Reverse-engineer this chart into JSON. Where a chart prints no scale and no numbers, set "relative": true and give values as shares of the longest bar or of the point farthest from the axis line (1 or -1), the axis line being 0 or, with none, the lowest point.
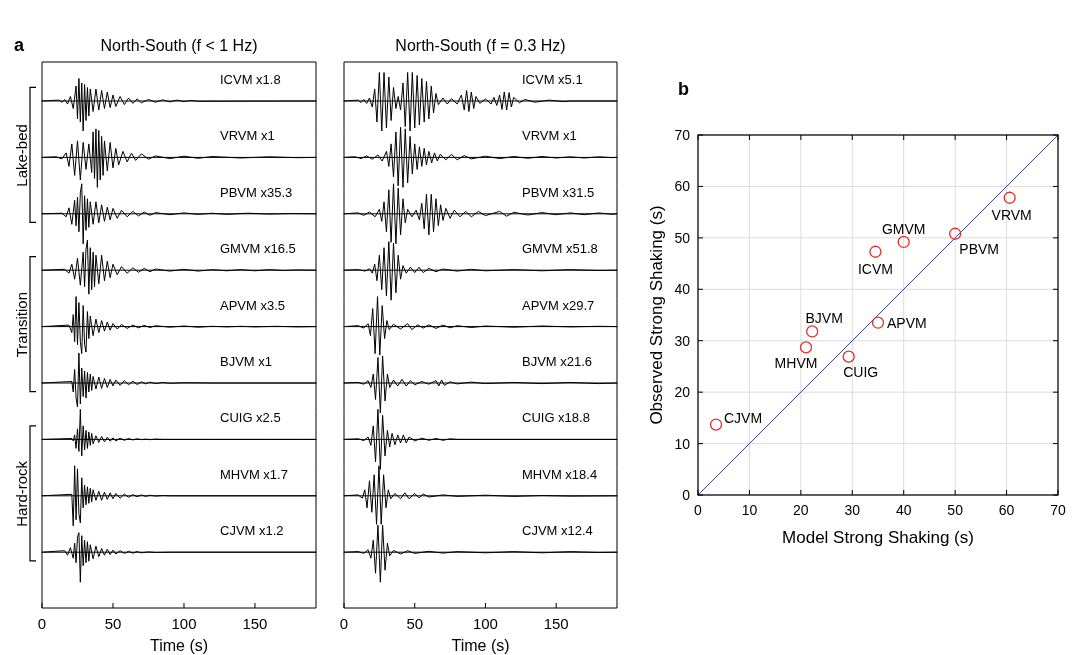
{
  "chart_data": [
    {
      "type": "line",
      "relative": true,
      "title": "North-South (f < 1 Hz)",
      "subtitle": "a",
      "annotations": [
        "ICVM x1.8"
      ],
      "xlim": [
        0,
        193
      ],
      "color": "#000000",
      "x": [
        0,
        12,
        14,
        16,
        18,
        20,
        22,
        24,
        25,
        26,
        27,
        28,
        29,
        30,
        31,
        32,
        33,
        34,
        36,
        38,
        40,
        42,
        44,
        46,
        48,
        50,
        52,
        55,
        58,
        61,
        64,
        67,
        70,
        75,
        80,
        85,
        90,
        95,
        100,
        105,
        110,
        193
      ],
      "values": [
        0,
        0.03,
        -0.04,
        0.05,
        -0.1,
        0.15,
        -0.25,
        0.5,
        -0.6,
        0.75,
        -0.7,
        0.6,
        -1,
        0.55,
        -0.65,
        0.45,
        -0.5,
        0.4,
        -0.35,
        0.4,
        -0.3,
        0.35,
        -0.25,
        0.3,
        -0.22,
        0.2,
        -0.18,
        0.15,
        -0.12,
        0.1,
        -0.08,
        0.07,
        -0.06,
        0.05,
        -0.04,
        0.04,
        -0.03,
        0.03,
        -0.02,
        0.02,
        -0.01,
        0
      ]
    },
    {
      "type": "line",
      "relative": true,
      "annotations": [
        "VRVM x1",
        "Lake-bed"
      ],
      "xlim": [
        0,
        193
      ],
      "color": "#000000",
      "x": [
        0,
        10,
        14,
        17,
        19,
        21,
        23,
        25,
        27,
        29,
        31,
        33,
        35,
        36,
        37,
        38,
        39,
        40,
        41,
        42,
        43,
        44,
        46,
        48,
        50,
        52,
        54,
        57,
        60,
        63,
        66,
        70,
        75,
        80,
        90,
        100,
        110,
        120,
        140,
        160,
        180,
        193
      ],
      "values": [
        0,
        0.02,
        -0.05,
        0.15,
        -0.3,
        0.45,
        -0.6,
        0.55,
        -0.75,
        0.5,
        -0.4,
        0.45,
        -0.5,
        0.85,
        -0.7,
        0.95,
        -1,
        0.9,
        -0.75,
        0.7,
        -0.6,
        0.55,
        -0.45,
        0.5,
        -0.35,
        0.3,
        -0.25,
        0.2,
        -0.15,
        0.14,
        -0.1,
        0.12,
        -0.06,
        0.05,
        -0.04,
        0.04,
        -0.03,
        0.03,
        -0.02,
        0.02,
        -0.01,
        0
      ]
    },
    {
      "type": "line",
      "relative": true,
      "annotations": [
        "PBVM x35.3"
      ],
      "xlim": [
        0,
        193
      ],
      "color": "#000000",
      "x": [
        0,
        14,
        17,
        19,
        21,
        23,
        24,
        25,
        26,
        27,
        28,
        29,
        30,
        31,
        32,
        33,
        34,
        36,
        38,
        40,
        42,
        44,
        46,
        48,
        50,
        53,
        56,
        60,
        64,
        68,
        72,
        76,
        80,
        90,
        100,
        110,
        120,
        130,
        145,
        160,
        175,
        193
      ],
      "values": [
        0,
        0.02,
        -0.1,
        0.2,
        -0.35,
        0.45,
        -0.4,
        0.55,
        -0.6,
        0.7,
        1,
        -1,
        0.6,
        -0.55,
        0.5,
        -0.45,
        0.4,
        -0.35,
        0.4,
        -0.3,
        0.3,
        -0.25,
        0.22,
        -0.2,
        0.18,
        -0.15,
        0.12,
        -0.1,
        0.08,
        -0.07,
        0.06,
        -0.05,
        0.04,
        -0.03,
        0.03,
        -0.02,
        0.02,
        -0.02,
        0.02,
        -0.01,
        0.01,
        0
      ]
    },
    {
      "type": "line",
      "relative": true,
      "annotations": [
        "GMVM x16.5"
      ],
      "xlim": [
        0,
        193
      ],
      "color": "#000000",
      "x": [
        0,
        16,
        19,
        21,
        23,
        25,
        27,
        29,
        30,
        31,
        32,
        33,
        34,
        35,
        36,
        37,
        38,
        40,
        42,
        44,
        46,
        48,
        50,
        53,
        56,
        60,
        64,
        68,
        72,
        76,
        80,
        90,
        100,
        110,
        120,
        130,
        140,
        150,
        160,
        170,
        180,
        193
      ],
      "values": [
        0,
        0.03,
        -0.1,
        0.2,
        -0.3,
        0.4,
        -0.5,
        0.6,
        -0.55,
        0.7,
        1,
        -0.8,
        0.75,
        -0.65,
        0.6,
        -0.55,
        0.5,
        -0.45,
        0.5,
        -0.35,
        0.3,
        -0.25,
        0.2,
        -0.15,
        0.12,
        -0.1,
        0.08,
        -0.07,
        0.06,
        -0.05,
        0.04,
        -0.03,
        0.03,
        -0.03,
        0.02,
        -0.02,
        0.02,
        -0.02,
        0.02,
        -0.01,
        0.01,
        0
      ]
    },
    {
      "type": "line",
      "relative": true,
      "annotations": [
        "APVM x3.5",
        "Transition"
      ],
      "xlim": [
        0,
        193
      ],
      "color": "#000000",
      "x": [
        0,
        19,
        21,
        22,
        23,
        24,
        25,
        26,
        27,
        28,
        29,
        30,
        31,
        32,
        33,
        34,
        36,
        38,
        40,
        42,
        44,
        46,
        48,
        50,
        53,
        56,
        60,
        64,
        68,
        72,
        76,
        80,
        90,
        100,
        110,
        120,
        130,
        140,
        150,
        165,
        180,
        193
      ],
      "values": [
        0,
        0.05,
        -0.2,
        0.4,
        -0.5,
        1,
        -0.6,
        0.8,
        -0.5,
        -0.9,
        0.7,
        -0.6,
        -0.85,
        0.5,
        -0.4,
        0.35,
        -0.3,
        0.25,
        -0.2,
        0.2,
        -0.15,
        0.15,
        -0.12,
        0.1,
        -0.08,
        0.07,
        -0.06,
        0.05,
        -0.04,
        0.04,
        -0.03,
        0.03,
        -0.02,
        0.02,
        -0.02,
        0.01,
        -0.01,
        0.01,
        -0.01,
        0.01,
        -0.01,
        0
      ]
    },
    {
      "type": "line",
      "relative": true,
      "annotations": [
        "BJVM x1"
      ],
      "xlim": [
        0,
        193
      ],
      "color": "#000000",
      "x": [
        0,
        21,
        22,
        23,
        24,
        25,
        26,
        27,
        28,
        29,
        30,
        31,
        32,
        33,
        34,
        35,
        36,
        38,
        40,
        42,
        44,
        46,
        48,
        50,
        52,
        55,
        58,
        61,
        64,
        67,
        70,
        73,
        76,
        80,
        85,
        90,
        100,
        120,
        140,
        160,
        180,
        193
      ],
      "values": [
        0,
        0.05,
        -0.3,
        0.45,
        -0.5,
        -0.8,
        1,
        -0.7,
        0.5,
        -0.45,
        0.4,
        -0.5,
        0.35,
        -0.3,
        0.3,
        -0.25,
        0.22,
        -0.2,
        0.2,
        -0.18,
        0.15,
        -0.15,
        0.12,
        -0.1,
        0.1,
        -0.08,
        0.08,
        -0.06,
        0.06,
        -0.05,
        0.04,
        -0.03,
        0.03,
        -0.02,
        0.02,
        -0.01,
        0.01,
        0,
        0,
        0,
        0,
        0
      ]
    },
    {
      "type": "line",
      "relative": true,
      "annotations": [
        "CUIG x2.5"
      ],
      "xlim": [
        0,
        193
      ],
      "color": "#000000",
      "x": [
        0,
        21,
        22,
        23,
        24,
        25,
        26,
        27,
        28,
        29,
        30,
        31,
        32,
        33,
        34,
        35,
        36,
        38,
        40,
        42,
        44,
        46,
        48,
        50,
        52,
        55,
        58,
        61,
        64,
        67,
        70,
        73,
        76,
        80,
        85,
        90,
        100,
        120,
        140,
        160,
        180,
        193
      ],
      "values": [
        0,
        0.03,
        -0.05,
        0.15,
        -0.3,
        0.35,
        -0.4,
        1,
        -0.55,
        0.45,
        -0.35,
        0.3,
        -0.3,
        0.25,
        -0.2,
        0.2,
        -0.15,
        0.12,
        -0.1,
        0.1,
        -0.08,
        0.07,
        -0.06,
        0.05,
        -0.05,
        0.04,
        -0.03,
        0.03,
        -0.02,
        0.02,
        -0.01,
        0.01,
        -0.01,
        0.01,
        0,
        0,
        0,
        0,
        0,
        0,
        0,
        0
      ]
    },
    {
      "type": "line",
      "relative": true,
      "annotations": [
        "MHVM x1.7",
        "Hard-rock"
      ],
      "xlim": [
        0,
        193
      ],
      "color": "#000000",
      "x": [
        0,
        21,
        22,
        23,
        24,
        25,
        26,
        27,
        28,
        29,
        30,
        31,
        32,
        33,
        34,
        35,
        36,
        38,
        40,
        42,
        44,
        46,
        48,
        50,
        52,
        55,
        58,
        61,
        64,
        67,
        70,
        73,
        76,
        80,
        85,
        90,
        100,
        120,
        140,
        160,
        180,
        193
      ],
      "values": [
        0,
        0.05,
        -1,
        1,
        -0.8,
        0.9,
        -0.6,
        -0.9,
        0.6,
        -0.4,
        0.35,
        -0.3,
        0.3,
        -0.25,
        0.25,
        -0.2,
        0.2,
        -0.15,
        0.15,
        -0.15,
        0.12,
        -0.12,
        0.1,
        -0.1,
        0.08,
        -0.08,
        0.06,
        -0.05,
        0.04,
        -0.03,
        0.03,
        -0.02,
        0.02,
        -0.01,
        0.01,
        0,
        0,
        0,
        0,
        0,
        0,
        0
      ]
    },
    {
      "type": "line",
      "relative": true,
      "annotations": [
        "CJVM x1.2"
      ],
      "xlabel": "Time (s)",
      "tick_labels": "x",
      "xlim": [
        0,
        193
      ],
      "xticks": [
        0,
        50,
        100,
        150
      ],
      "color": "#000000",
      "x": [
        0,
        16,
        18,
        20,
        22,
        23,
        24,
        25,
        26,
        27,
        28,
        29,
        30,
        31,
        32,
        33,
        34,
        36,
        38,
        40,
        42,
        44,
        46,
        48,
        50,
        52,
        55,
        58,
        61,
        64,
        67,
        70,
        75,
        80,
        90,
        100,
        110,
        120,
        140,
        160,
        180,
        193
      ],
      "values": [
        0,
        0.05,
        -0.1,
        0.15,
        -0.2,
        0.3,
        -0.35,
        0.5,
        0.65,
        -1,
        0.55,
        -0.45,
        0.4,
        -0.35,
        0.35,
        -0.3,
        0.25,
        -0.22,
        0.2,
        -0.15,
        0.12,
        -0.1,
        0.1,
        -0.08,
        0.07,
        -0.06,
        0.05,
        -0.04,
        0.03,
        -0.03,
        0.02,
        -0.02,
        0.01,
        -0.01,
        0,
        0,
        0,
        0,
        0,
        0,
        0,
        0
      ]
    },
    {
      "type": "line",
      "relative": true,
      "title": "North-South (f = 0.3 Hz)",
      "annotations": [
        "ICVM x5.1"
      ],
      "xlim": [
        0,
        193
      ],
      "color": "#000000",
      "x": [
        0,
        10,
        12,
        14,
        16,
        18,
        20,
        21.7,
        23.3,
        25,
        26.7,
        28.3,
        30,
        31.7,
        33.3,
        35,
        36.7,
        38.3,
        40,
        41.7,
        43.3,
        45,
        46.7,
        48.3,
        50,
        51.7,
        53.3,
        55,
        56.7,
        58.3,
        60,
        61.7,
        63.3,
        65,
        66.7,
        70,
        73,
        76,
        80,
        83,
        85,
        86.7,
        88.3,
        90,
        91.7,
        93.3,
        96,
        100,
        104,
        106,
        108,
        110,
        111.7,
        113.3,
        115,
        116.7,
        118.3,
        120,
        124,
        128,
        135,
        145,
        155,
        160,
        193
      ],
      "values": [
        0,
        0.03,
        -0.05,
        0.05,
        -0.08,
        0.1,
        -0.2,
        0.4,
        -0.7,
        0.95,
        -1,
        0.95,
        -0.9,
        0.8,
        -0.65,
        0.45,
        -0.25,
        0.15,
        -0.3,
        0.6,
        -0.85,
        0.95,
        -1,
        0.95,
        -0.9,
        0.85,
        -0.8,
        0.75,
        -0.7,
        0.65,
        -0.6,
        0.5,
        -0.4,
        0.25,
        -0.12,
        0.1,
        -0.1,
        0.08,
        -0.1,
        0.2,
        -0.3,
        0.35,
        -0.35,
        0.3,
        -0.25,
        0.15,
        -0.08,
        0.07,
        -0.1,
        0.12,
        -0.15,
        0.2,
        -0.28,
        0.3,
        -0.3,
        0.28,
        -0.2,
        0.12,
        -0.06,
        0.05,
        -0.04,
        0.03,
        -0.02,
        0,
        0
      ]
    },
    {
      "type": "line",
      "relative": true,
      "annotations": [
        "VRVM x1"
      ],
      "xlim": [
        0,
        193
      ],
      "color": "#000000",
      "x": [
        0,
        8,
        12,
        16,
        20,
        24,
        27,
        30,
        31.7,
        33.3,
        35,
        36.7,
        38.3,
        40,
        41.7,
        43.3,
        45,
        46.7,
        48.3,
        50,
        51.7,
        53.3,
        55,
        56.7,
        58.3,
        60,
        62,
        64,
        66,
        68,
        72,
        76,
        80,
        85,
        90,
        100,
        110,
        120,
        130,
        140,
        150,
        160,
        170,
        180,
        190,
        193
      ],
      "values": [
        0,
        0.02,
        -0.04,
        0.05,
        -0.06,
        0.08,
        -0.12,
        0.2,
        -0.3,
        0.45,
        -0.65,
        0.85,
        -0.95,
        1,
        -1,
        0.95,
        -0.85,
        0.7,
        -0.55,
        0.45,
        -0.4,
        0.35,
        -0.3,
        0.3,
        -0.25,
        0.2,
        -0.18,
        0.15,
        -0.12,
        0.1,
        -0.08,
        0.1,
        -0.08,
        0.06,
        -0.05,
        0.04,
        -0.04,
        0.03,
        -0.03,
        0.03,
        -0.02,
        0.02,
        -0.02,
        0.02,
        -0.01,
        0
      ]
    },
    {
      "type": "line",
      "relative": true,
      "annotations": [
        "PBVM x31.5"
      ],
      "xlim": [
        0,
        193
      ],
      "color": "#000000",
      "x": [
        0,
        10,
        14,
        18,
        22,
        25,
        26.7,
        28.3,
        30,
        31.7,
        33.3,
        35,
        36.7,
        38.3,
        40,
        41.7,
        43.3,
        45,
        48,
        51,
        53.3,
        55,
        56.7,
        58.3,
        60,
        61.7,
        63.3,
        65,
        66.7,
        68.3,
        70,
        72,
        75,
        78,
        82,
        86,
        90,
        95,
        100,
        110,
        115,
        120,
        130,
        140,
        150,
        160,
        170,
        180,
        190,
        193
      ],
      "values": [
        0,
        0.03,
        -0.05,
        0.06,
        -0.1,
        0.15,
        -0.25,
        0.4,
        -0.6,
        0.8,
        -0.95,
        1,
        -1,
        0.85,
        -0.7,
        0.5,
        -0.3,
        0.15,
        -0.1,
        0.12,
        -0.2,
        0.35,
        -0.5,
        0.65,
        -0.7,
        0.65,
        -0.6,
        0.5,
        -0.4,
        0.3,
        -0.22,
        0.18,
        -0.15,
        0.12,
        -0.1,
        0.08,
        -0.1,
        0.08,
        -0.06,
        0.08,
        -0.08,
        0.05,
        -0.04,
        0.04,
        -0.03,
        0.03,
        -0.03,
        0.03,
        -0.02,
        0
      ]
    },
    {
      "type": "line",
      "relative": true,
      "annotations": [
        "GMVM x51.8"
      ],
      "xlim": [
        0,
        193
      ],
      "color": "#000000",
      "x": [
        0,
        10,
        15,
        18,
        20,
        21.7,
        23.3,
        25,
        26.7,
        28.3,
        30,
        31.7,
        33.3,
        35,
        36.7,
        38.3,
        40,
        41.7,
        44,
        47,
        50,
        53,
        56,
        60,
        65,
        70,
        80,
        90,
        100,
        120,
        140,
        160,
        180,
        193
      ],
      "values": [
        0,
        0.02,
        -0.03,
        0.05,
        -0.1,
        0.2,
        -0.35,
        0.5,
        -0.65,
        0.75,
        -0.85,
        0.95,
        -1,
        0.9,
        -0.75,
        0.5,
        -0.3,
        0.15,
        -0.1,
        0.1,
        -0.08,
        0.1,
        -0.08,
        0.06,
        -0.05,
        0.04,
        -0.03,
        0.03,
        -0.02,
        0.02,
        -0.02,
        0.02,
        -0.01,
        0
      ]
    },
    {
      "type": "line",
      "relative": true,
      "annotations": [
        "APVM x29.7"
      ],
      "xlim": [
        0,
        193
      ],
      "color": "#000000",
      "x": [
        0,
        10,
        14,
        17,
        18.7,
        20.3,
        22,
        23.7,
        25.3,
        27,
        28.7,
        30.3,
        32,
        35,
        40,
        45,
        48,
        52,
        56,
        60,
        65,
        70,
        75,
        80,
        90,
        100,
        120,
        140,
        160,
        180,
        193
      ],
      "values": [
        0,
        0.03,
        -0.05,
        0.1,
        -0.3,
        0.6,
        -0.9,
        1,
        -0.95,
        0.7,
        -0.4,
        0.2,
        -0.1,
        0.08,
        -0.08,
        0.1,
        -0.1,
        0.06,
        -0.05,
        0.06,
        -0.06,
        0.05,
        -0.04,
        0.03,
        -0.03,
        0.02,
        -0.02,
        0.02,
        -0.01,
        0.01,
        0
      ]
    },
    {
      "type": "line",
      "relative": true,
      "annotations": [
        "BJVM x21.6"
      ],
      "xlim": [
        0,
        193
      ],
      "color": "#000000",
      "x": [
        0,
        10,
        14,
        17,
        19,
        20.7,
        22.3,
        24,
        25.7,
        27.3,
        29,
        30.7,
        32.3,
        35,
        38,
        41,
        44,
        47,
        50,
        55,
        60,
        65,
        67,
        69,
        71,
        75,
        80,
        90,
        100,
        120,
        140,
        160,
        180,
        193
      ],
      "values": [
        0,
        0.02,
        -0.04,
        0.08,
        -0.15,
        0.3,
        -0.55,
        0.85,
        -1,
        0.9,
        -0.6,
        0.3,
        -0.15,
        0.1,
        -0.1,
        0.12,
        -0.1,
        0.08,
        -0.06,
        0.05,
        -0.04,
        0.08,
        -0.1,
        0.1,
        -0.08,
        0.04,
        -0.03,
        0.03,
        -0.02,
        0.02,
        -0.02,
        0.02,
        -0.02,
        0
      ]
    },
    {
      "type": "line",
      "relative": true,
      "annotations": [
        "CUIG x18.8"
      ],
      "xlim": [
        0,
        193
      ],
      "color": "#000000",
      "x": [
        0,
        10,
        14,
        17,
        19,
        20.7,
        22.3,
        24,
        25.7,
        27.3,
        29,
        30.7,
        32.3,
        34,
        36,
        38,
        40,
        42,
        44,
        46,
        50,
        55,
        60,
        65,
        70,
        75,
        80,
        193
      ],
      "values": [
        0,
        0.02,
        -0.04,
        0.08,
        -0.2,
        0.45,
        -0.75,
        1,
        -1,
        0.8,
        -0.55,
        0.3,
        -0.25,
        0.2,
        -0.18,
        0.15,
        -0.12,
        0.15,
        -0.12,
        0.08,
        -0.05,
        0.04,
        -0.03,
        0.03,
        -0.03,
        0.02,
        0,
        0
      ]
    },
    {
      "type": "line",
      "relative": true,
      "annotations": [
        "MHVM x18.4"
      ],
      "xlim": [
        0,
        193
      ],
      "color": "#000000",
      "x": [
        0,
        10,
        13,
        14.7,
        16.3,
        18,
        19.7,
        21.3,
        23,
        24.7,
        26.3,
        28,
        29.7,
        31.3,
        33,
        36,
        40,
        43,
        46,
        50,
        53,
        56,
        60,
        70,
        80,
        100,
        120,
        140,
        160,
        193
      ],
      "values": [
        0,
        0.03,
        -0.08,
        0.2,
        -0.4,
        0.5,
        -0.55,
        0.7,
        -0.95,
        1,
        -0.95,
        0.7,
        -0.4,
        0.2,
        -0.1,
        0.08,
        -0.1,
        0.1,
        -0.1,
        0.08,
        -0.07,
        0.06,
        -0.04,
        0.03,
        -0.02,
        0.02,
        -0.02,
        0.01,
        -0.01,
        0
      ]
    },
    {
      "type": "line",
      "relative": true,
      "annotations": [
        "CJVM x12.4"
      ],
      "xlabel": "Time (s)",
      "tick_labels": "x",
      "xlim": [
        0,
        193
      ],
      "xticks": [
        0,
        50,
        100,
        150
      ],
      "color": "#000000",
      "x": [
        0,
        10,
        14,
        17,
        19,
        20.7,
        22.3,
        24,
        25.7,
        27.3,
        29,
        30.7,
        32.3,
        35,
        40,
        45,
        50,
        60,
        70,
        80,
        100,
        120,
        140,
        160,
        180,
        193
      ],
      "values": [
        0,
        0.02,
        -0.04,
        0.08,
        -0.2,
        0.4,
        -0.7,
        0.9,
        -1,
        0.9,
        -0.6,
        0.3,
        -0.12,
        0.06,
        -0.06,
        0.05,
        -0.04,
        0.03,
        -0.03,
        0.02,
        -0.02,
        0.02,
        -0.02,
        0.02,
        -0.01,
        0
      ]
    },
    {
      "type": "scatter",
      "subtitle": "b",
      "xlabel": "Model Strong Shaking (s)",
      "ylabel": "Observed Strong Shaking (s)",
      "xlim": [
        0,
        70
      ],
      "ylim": [
        0,
        70
      ],
      "xticks": [
        0,
        10,
        20,
        30,
        40,
        50,
        60,
        70
      ],
      "yticks": [
        0,
        10,
        20,
        30,
        40,
        50,
        60,
        70
      ],
      "grid": true,
      "series": [
        {
          "type": "line",
          "color": "#3a44a0",
          "x": [
            0,
            70
          ],
          "values": [
            0,
            70
          ]
        },
        {
          "type": "scatter",
          "marker": "circle",
          "color": "#e0302a",
          "x": [
            3.5,
            21,
            22.2,
            29.3,
            35,
            34.5,
            40,
            50,
            60.6
          ],
          "values": [
            13.7,
            28.7,
            31.8,
            26.9,
            33.5,
            47.3,
            49.2,
            50.8,
            57.8
          ]
        }
      ],
      "annotations": [
        {
          "text": "CJVM",
          "x": 3.5,
          "y": 13.7
        },
        {
          "text": "MHVM",
          "x": 21,
          "y": 28.7
        },
        {
          "text": "BJVM",
          "x": 22.2,
          "y": 31.8
        },
        {
          "text": "CUIG",
          "x": 29.3,
          "y": 26.9
        },
        {
          "text": "APVM",
          "x": 35,
          "y": 33.5
        },
        {
          "text": "ICVM",
          "x": 34.5,
          "y": 47.3
        },
        {
          "text": "GMVM",
          "x": 40,
          "y": 49.2
        },
        {
          "text": "PBVM",
          "x": 50,
          "y": 50.8
        },
        {
          "text": "VRVM",
          "x": 60.6,
          "y": 57.8
        }
      ]
    }
  ]
}
